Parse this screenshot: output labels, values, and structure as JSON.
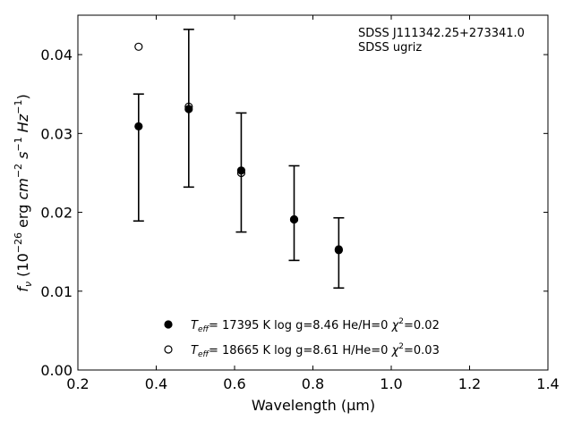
{
  "chart_data": {
    "type": "scatter",
    "xlabel": "Wavelength (μm)",
    "ylabel": "f_ν (10^-26 erg cm^-2 s^-1 Hz^-1)",
    "xlim": [
      0.2,
      1.4
    ],
    "ylim": [
      0.0,
      0.045
    ],
    "x_ticks": [
      "0.2",
      "0.4",
      "0.6",
      "0.8",
      "1.0",
      "1.2",
      "1.4"
    ],
    "y_ticks": [
      "0.00",
      "0.01",
      "0.02",
      "0.03",
      "0.04"
    ],
    "grid": false,
    "legend_position": "bottom-center",
    "annotation": {
      "line1": "SDSS J111342.25+273341.0",
      "line2": "SDSS ugriz"
    },
    "observed": {
      "x": [
        0.355,
        0.483,
        0.617,
        0.752,
        0.866
      ],
      "y": [
        0.0309,
        0.0333,
        0.0252,
        0.0192,
        0.0153
      ],
      "err_low": [
        0.0189,
        0.0232,
        0.0175,
        0.0139,
        0.0104
      ],
      "err_high": [
        0.035,
        0.0432,
        0.0326,
        0.0259,
        0.0193
      ]
    },
    "series": [
      {
        "marker": "filled-circle",
        "label_parts": {
          "sym": "T",
          "sub": "eff",
          "rest": "= 17395 K  log g=8.46  He/H=0  ",
          "chi": "χ",
          "sup": "2",
          "chi_val": "=0.02"
        },
        "x": [
          0.355,
          0.483,
          0.617,
          0.752,
          0.866
        ],
        "y": [
          0.0309,
          0.0331,
          0.0253,
          0.0191,
          0.0152
        ]
      },
      {
        "marker": "open-circle",
        "label_parts": {
          "sym": "T",
          "sub": "eff",
          "rest": "= 18665 K  log g=8.61  H/He=0  ",
          "chi": "χ",
          "sup": "2",
          "chi_val": "=0.03"
        },
        "x": [
          0.355,
          0.483,
          0.617,
          0.752,
          0.866
        ],
        "y": [
          0.041,
          0.0334,
          0.025,
          0.0191,
          0.0153
        ]
      }
    ],
    "colors": {
      "marker": "#000000",
      "axis": "#000000"
    }
  }
}
